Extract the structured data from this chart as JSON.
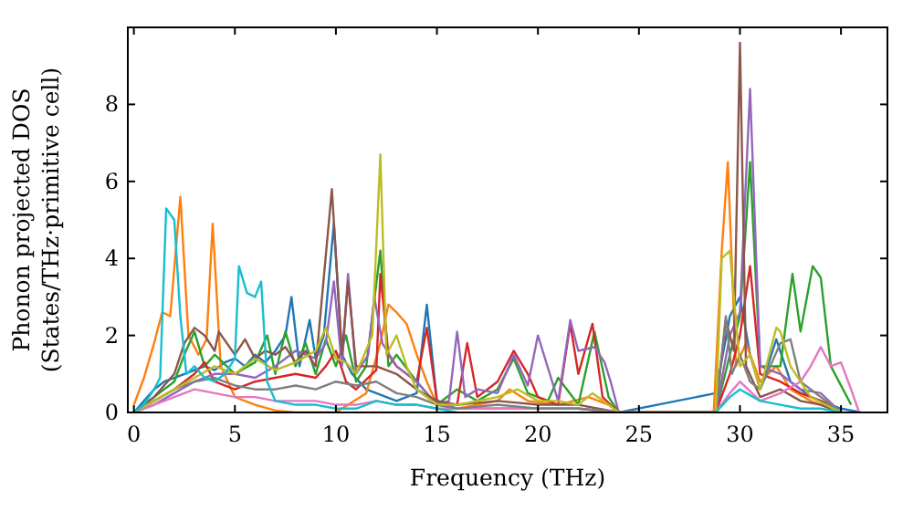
{
  "chart_data": {
    "type": "line",
    "xlabel": "Frequency (THz)",
    "ylabel": "Phonon projected DOS\n(States/THz·primitive cell)",
    "xlim": [
      -0.3,
      37.3
    ],
    "xticks": [
      0,
      5,
      10,
      15,
      20,
      25,
      30,
      35
    ],
    "ylim": [
      0,
      10
    ],
    "yticks": [
      0,
      2,
      4,
      6,
      8
    ],
    "series": [
      {
        "color": "#1f77b4",
        "x": [
          0,
          0.5,
          1,
          1.5,
          2,
          2.5,
          3,
          3.5,
          4,
          4.5,
          5,
          5.5,
          6,
          6.5,
          7,
          7.5,
          7.8,
          8.2,
          8.7,
          9,
          9.4,
          9.9,
          10.3,
          10.8,
          11.5,
          12,
          12.5,
          13,
          13.5,
          14,
          14.5,
          15,
          16,
          18,
          20,
          22,
          24,
          28.8,
          29.5,
          30,
          30.5,
          31,
          31.8,
          32.5,
          33.5,
          35,
          36
        ],
        "values": [
          0,
          0.3,
          0.6,
          0.8,
          0.9,
          1.0,
          1.1,
          1.2,
          1.1,
          1.3,
          1.4,
          1.2,
          1.5,
          1.3,
          1.6,
          2.0,
          3.0,
          1.2,
          2.4,
          1.4,
          2.0,
          4.9,
          1.5,
          1.0,
          0.6,
          0.5,
          0.4,
          0.3,
          0.4,
          0.5,
          2.8,
          0.3,
          0.1,
          0.1,
          0.1,
          0.1,
          0,
          0.5,
          2.5,
          3,
          1.5,
          0.6,
          1.9,
          0.8,
          0.4,
          0.1,
          0
        ]
      },
      {
        "color": "#ff7f0e",
        "x": [
          0,
          0.5,
          1,
          1.4,
          1.8,
          2.3,
          2.7,
          3.2,
          3.6,
          3.9,
          4.3,
          5,
          6,
          7,
          8,
          10,
          11.5,
          12.2,
          12.6,
          13,
          13.5,
          14,
          14.5,
          15,
          16,
          18,
          18.6,
          19.5,
          21,
          22.5,
          23.5,
          24,
          28.7,
          29.1,
          29.4,
          29.8,
          30.3,
          31,
          31.8,
          32.5,
          33.5,
          35
        ],
        "values": [
          0.2,
          0.9,
          1.8,
          2.6,
          2.5,
          5.6,
          2.0,
          1.5,
          1.9,
          4.9,
          1.2,
          0.4,
          0.2,
          0.05,
          0,
          0,
          0.5,
          1.8,
          2.8,
          2.6,
          2.3,
          1.5,
          0.8,
          0.2,
          0.1,
          0.3,
          0.6,
          0.3,
          0.2,
          0.4,
          0.2,
          0,
          0,
          4.2,
          6.5,
          1.2,
          1.8,
          0.8,
          1.2,
          0.6,
          0.3,
          0
        ]
      },
      {
        "color": "#2ca02c",
        "x": [
          0,
          1,
          2,
          2.5,
          3,
          3.5,
          4,
          5,
          6,
          6.6,
          7,
          7.5,
          8,
          8.5,
          9,
          9.5,
          10,
          10.5,
          11,
          11.5,
          12.2,
          12.6,
          13,
          14,
          15,
          16,
          17,
          18,
          18.8,
          19.5,
          20.5,
          21,
          22,
          22.8,
          23.5,
          24,
          28.8,
          29.5,
          30,
          30.5,
          31,
          32,
          32.6,
          33,
          33.6,
          34,
          34.5,
          35.5
        ],
        "values": [
          0,
          0.4,
          0.8,
          1.5,
          2.1,
          1.2,
          1.5,
          1.0,
          1.3,
          2.0,
          1.0,
          2.1,
          1.2,
          1.8,
          1.0,
          1.9,
          1.2,
          2.0,
          0.8,
          1.2,
          4.2,
          1.2,
          1.5,
          0.8,
          0.2,
          0.6,
          0.3,
          0.6,
          1.4,
          0.5,
          0.3,
          0.9,
          0.2,
          2.1,
          0.4,
          0,
          0,
          1.5,
          2.5,
          6.5,
          1.2,
          1.2,
          3.6,
          2.1,
          3.8,
          3.5,
          1.2,
          0.2
        ]
      },
      {
        "color": "#d62728",
        "x": [
          0,
          1,
          2,
          3,
          3.5,
          4,
          5,
          6,
          7,
          8,
          9,
          9.5,
          10,
          10.5,
          11,
          12,
          12.2,
          12.6,
          13,
          14,
          14.5,
          15,
          16,
          16.5,
          17,
          18,
          18.8,
          19.5,
          20,
          21,
          21.6,
          22,
          22.7,
          23.2,
          24,
          28.8,
          29.5,
          30,
          30.5,
          31,
          32,
          33,
          34,
          35
        ],
        "values": [
          0,
          0.3,
          0.6,
          1.0,
          1.3,
          0.8,
          0.6,
          0.8,
          0.9,
          1.0,
          0.9,
          1.2,
          1.6,
          0.8,
          0.6,
          1.1,
          3.6,
          1.5,
          1.2,
          0.8,
          2.2,
          0.3,
          0.2,
          1.8,
          0.4,
          0.8,
          1.6,
          1.0,
          0.4,
          0.2,
          2.3,
          1.0,
          2.3,
          0.4,
          0,
          0,
          1.0,
          2.0,
          3.8,
          1.0,
          0.8,
          0.5,
          0.3,
          0
        ]
      },
      {
        "color": "#9467bd",
        "x": [
          0,
          1,
          2,
          3,
          4,
          5,
          6,
          7,
          8,
          9,
          9.5,
          9.9,
          10.3,
          10.6,
          11,
          11.6,
          11.9,
          12.3,
          13,
          14,
          15,
          15.6,
          16,
          16.4,
          17,
          18,
          18.8,
          19.5,
          20,
          21,
          21.6,
          22,
          22.8,
          23.3,
          23.6,
          24,
          28.8,
          29.5,
          30,
          30.5,
          31,
          32,
          33,
          34,
          35
        ],
        "values": [
          0,
          0.2,
          0.5,
          0.8,
          1.0,
          1.0,
          0.9,
          1.2,
          1.6,
          1.4,
          1.8,
          3.4,
          1.2,
          3.6,
          1.0,
          1.5,
          3.0,
          1.8,
          1.2,
          0.8,
          0.2,
          0.3,
          2.1,
          0.4,
          0.6,
          0.5,
          1.5,
          0.7,
          2.0,
          0.3,
          2.4,
          1.6,
          1.7,
          1.3,
          0.8,
          0,
          0,
          2.0,
          2.6,
          8.4,
          1.2,
          1.0,
          0.6,
          0.5,
          0
        ]
      },
      {
        "color": "#8c564b",
        "x": [
          0,
          1,
          2,
          2.5,
          3,
          3.5,
          4,
          4.2,
          5,
          5.5,
          6,
          6.5,
          7,
          7.5,
          8,
          8.5,
          9,
          9.8,
          10.3,
          10.6,
          11,
          12,
          13,
          14,
          15,
          16,
          18,
          20,
          22,
          24,
          28.8,
          29.3,
          29.7,
          30,
          30.3,
          31,
          32,
          33,
          34,
          35
        ],
        "values": [
          0,
          0.4,
          1.0,
          1.8,
          2.2,
          2.0,
          1.6,
          2.1,
          1.5,
          1.9,
          1.4,
          1.6,
          1.5,
          1.7,
          1.3,
          1.6,
          1.2,
          5.8,
          1.5,
          3.4,
          1.2,
          1.2,
          1.0,
          0.6,
          0.3,
          0.2,
          0.3,
          0.2,
          0.2,
          0,
          0,
          2.4,
          1.6,
          9.6,
          1.2,
          0.4,
          0.6,
          0.3,
          0.2,
          0
        ]
      },
      {
        "color": "#e377c2",
        "x": [
          0,
          1,
          2,
          3,
          4,
          5,
          6,
          7,
          8,
          9,
          10,
          11,
          12,
          13,
          14,
          15,
          16,
          18,
          20,
          22,
          24,
          28.8,
          29.5,
          30,
          31,
          32,
          33,
          33.5,
          34,
          34.5,
          35,
          35.5,
          35.9
        ],
        "values": [
          0,
          0.2,
          0.4,
          0.6,
          0.5,
          0.4,
          0.4,
          0.3,
          0.3,
          0.3,
          0.2,
          0.2,
          0.3,
          0.2,
          0.2,
          0.1,
          0.1,
          0.1,
          0.1,
          0.1,
          0,
          0,
          0.5,
          0.8,
          0.3,
          0.5,
          0.8,
          1.2,
          1.7,
          1.2,
          1.3,
          0.6,
          0
        ]
      },
      {
        "color": "#7f7f7f",
        "x": [
          0,
          1,
          2,
          3,
          4,
          5,
          6,
          7,
          8,
          9,
          10,
          11,
          12,
          13,
          14,
          15,
          16,
          18,
          20,
          22,
          24,
          28.8,
          29.3,
          29.6,
          30,
          30.5,
          31,
          31.5,
          32,
          32.5,
          33,
          34,
          35
        ],
        "values": [
          0,
          0.3,
          0.6,
          0.8,
          0.9,
          0.7,
          0.6,
          0.6,
          0.7,
          0.6,
          0.8,
          0.7,
          0.8,
          0.5,
          0.4,
          0.2,
          0.1,
          0.2,
          0.1,
          0.1,
          0,
          0,
          2.5,
          1.0,
          1.5,
          0.8,
          0.6,
          1.2,
          1.8,
          1.9,
          0.8,
          0.4,
          0
        ]
      },
      {
        "color": "#bcbd22",
        "x": [
          0,
          1,
          2,
          3,
          4,
          5,
          6,
          7,
          8,
          9,
          9.5,
          10,
          10.5,
          11,
          11.8,
          12.2,
          12.5,
          13,
          13.5,
          14,
          15,
          16,
          17,
          18,
          19,
          20,
          21,
          22,
          22.7,
          23.5,
          24,
          28.8,
          29.1,
          29.5,
          30,
          30.5,
          31,
          31.8,
          32,
          32.5,
          33.5,
          35
        ],
        "values": [
          0,
          0.3,
          0.6,
          0.9,
          1.2,
          1.0,
          1.4,
          1.1,
          1.3,
          1.6,
          2.2,
          1.4,
          1.3,
          1.0,
          2.0,
          6.7,
          1.5,
          2.0,
          1.2,
          0.6,
          0.2,
          0.2,
          0.3,
          0.4,
          0.6,
          0.3,
          0.3,
          0.2,
          0.5,
          0.2,
          0,
          0,
          4.0,
          4.2,
          1.2,
          1.5,
          0.6,
          2.2,
          2.1,
          1.2,
          0.4,
          0
        ]
      },
      {
        "color": "#17becf",
        "x": [
          0,
          0.5,
          1,
          1.3,
          1.6,
          2.0,
          2.3,
          2.6,
          3,
          3.5,
          4,
          4.5,
          5,
          5.2,
          5.6,
          6,
          6.3,
          6.6,
          7,
          8,
          9,
          10,
          11,
          12,
          13,
          14,
          15,
          16,
          18,
          20,
          22,
          24,
          28.8,
          29.5,
          30,
          31,
          32,
          33,
          34,
          35
        ],
        "values": [
          0,
          0.2,
          0.6,
          0.9,
          5.3,
          5.0,
          2.5,
          1.0,
          1.2,
          0.9,
          0.8,
          1.0,
          1.4,
          3.8,
          3.1,
          3.0,
          3.4,
          0.8,
          0.3,
          0.2,
          0.2,
          0.1,
          0.1,
          0.3,
          0.2,
          0.2,
          0.1,
          0,
          null,
          null,
          null,
          null,
          0,
          0.4,
          0.6,
          0.3,
          0.2,
          0.1,
          0.1,
          0
        ]
      }
    ]
  }
}
